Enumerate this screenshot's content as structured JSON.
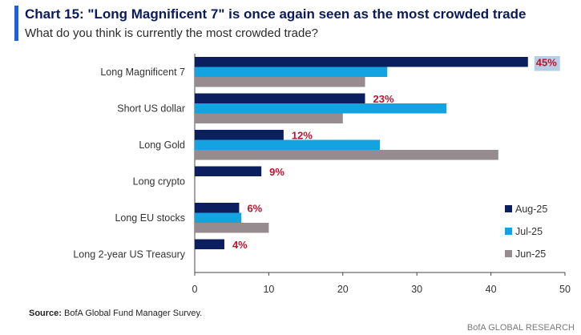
{
  "header": {
    "title": "Chart 15: \"Long Magnificent 7\" is once again seen as the most crowded trade",
    "subtitle": "What do you think is currently the most crowded trade?"
  },
  "footer": {
    "source_label": "Source:",
    "source_text": " BofA Global Fund Manager Survey.",
    "brand": "BofA GLOBAL RESEARCH"
  },
  "chart_data": {
    "type": "bar",
    "orientation": "horizontal",
    "title": "Chart 15: \"Long Magnificent 7\" is once again seen as the most crowded trade",
    "subtitle": "What do you think is currently the most crowded trade?",
    "categories": [
      "Long Magnificent 7",
      "Short US dollar",
      "Long Gold",
      "Long crypto",
      "Long EU stocks",
      "Long 2-year US Treasury"
    ],
    "series": [
      {
        "name": "Aug-25",
        "color": "#0b1f5e",
        "values": [
          45,
          23,
          12,
          9,
          6,
          4
        ]
      },
      {
        "name": "Jul-25",
        "color": "#12a3e0",
        "values": [
          26,
          34,
          25,
          0,
          6.3,
          0
        ]
      },
      {
        "name": "Jun-25",
        "color": "#968b8e",
        "values": [
          23,
          20,
          41,
          0,
          10,
          0
        ]
      }
    ],
    "data_labels": [
      "45%",
      "23%",
      "12%",
      "9%",
      "6%",
      "4%"
    ],
    "xlim": [
      0,
      50
    ],
    "xticks": [
      "0",
      "10",
      "20",
      "30",
      "40",
      "50"
    ],
    "legend_position": "bottom-right"
  }
}
